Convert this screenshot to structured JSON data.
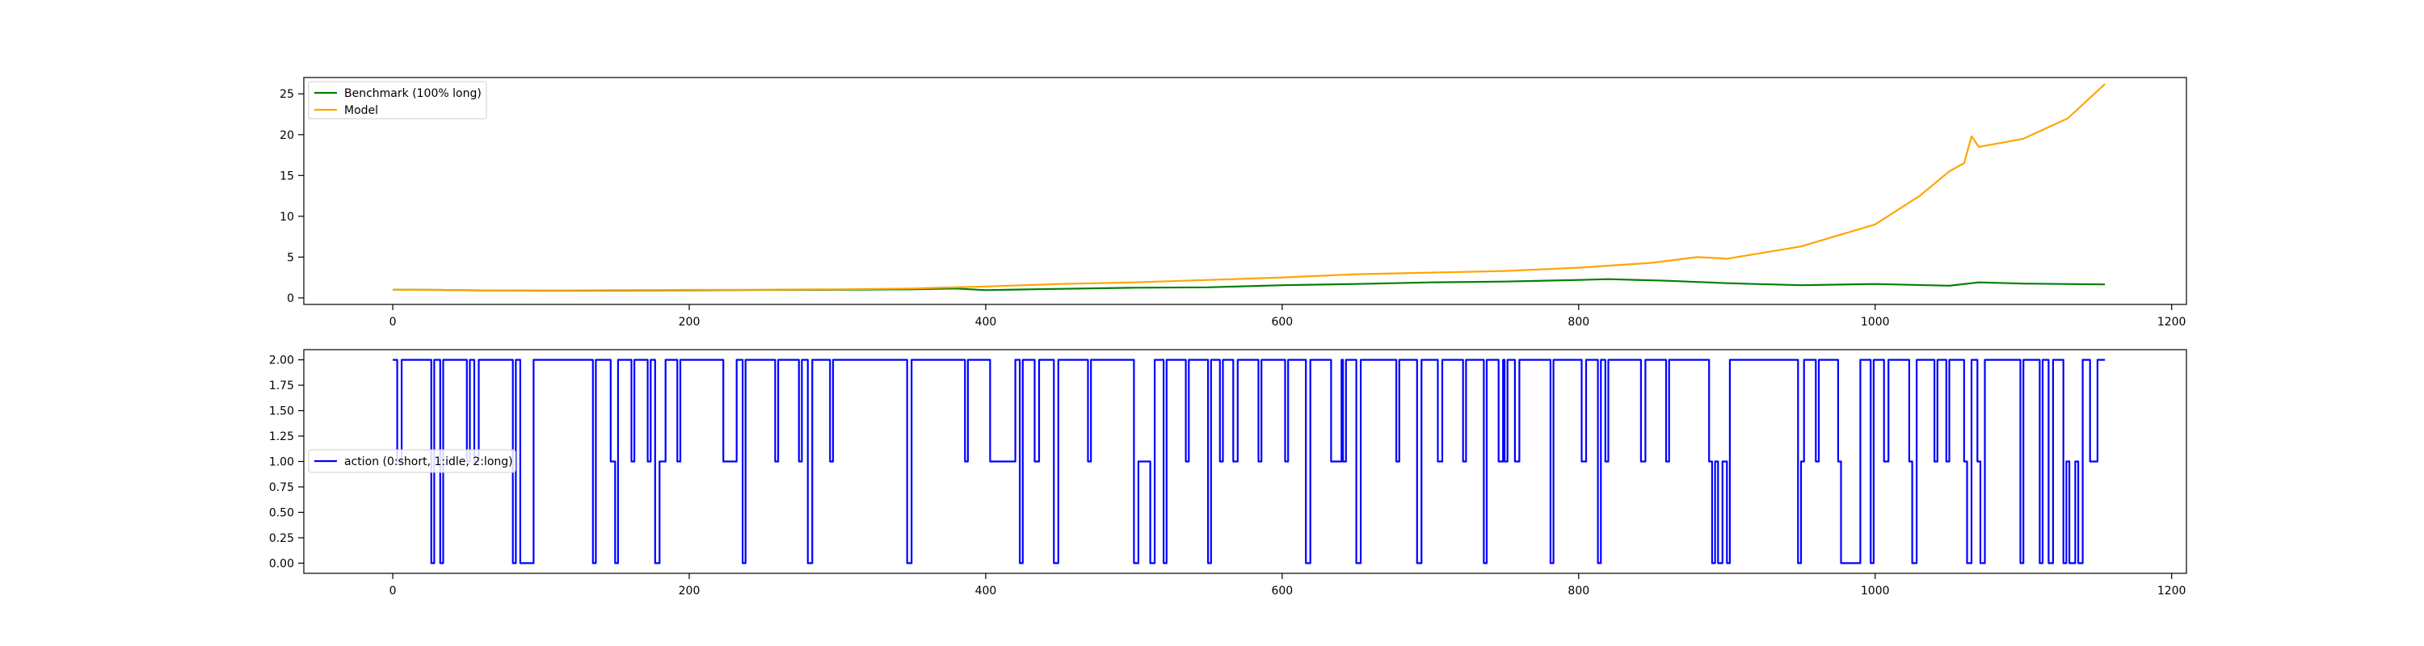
{
  "figure": {
    "background": "#ffffff"
  },
  "chart_data": [
    {
      "type": "line",
      "xlim": [
        -60,
        1210
      ],
      "ylim": [
        -0.8,
        27.0
      ],
      "xticks": [
        0,
        200,
        400,
        600,
        800,
        1000,
        1200
      ],
      "yticks": [
        0,
        5,
        10,
        15,
        20,
        25
      ],
      "ytick_labels": [
        "0",
        "5",
        "10",
        "15",
        "20",
        "25"
      ],
      "legend_position": "top-left",
      "grid": false,
      "series": [
        {
          "name": "Benchmark (100% long)",
          "color": "#008000",
          "points": [
            [
              0,
              1.0
            ],
            [
              30,
              0.98
            ],
            [
              60,
              0.92
            ],
            [
              100,
              0.88
            ],
            [
              150,
              0.9
            ],
            [
              200,
              0.93
            ],
            [
              250,
              0.98
            ],
            [
              300,
              1.0
            ],
            [
              350,
              1.05
            ],
            [
              380,
              1.15
            ],
            [
              400,
              0.95
            ],
            [
              430,
              1.05
            ],
            [
              500,
              1.25
            ],
            [
              550,
              1.3
            ],
            [
              600,
              1.55
            ],
            [
              650,
              1.7
            ],
            [
              700,
              1.9
            ],
            [
              750,
              2.0
            ],
            [
              800,
              2.2
            ],
            [
              820,
              2.3
            ],
            [
              860,
              2.1
            ],
            [
              900,
              1.8
            ],
            [
              950,
              1.55
            ],
            [
              1000,
              1.7
            ],
            [
              1050,
              1.5
            ],
            [
              1070,
              1.9
            ],
            [
              1100,
              1.75
            ],
            [
              1155,
              1.65
            ]
          ]
        },
        {
          "name": "Model",
          "color": "#ffa500",
          "points": [
            [
              0,
              1.0
            ],
            [
              30,
              0.98
            ],
            [
              60,
              0.92
            ],
            [
              100,
              0.9
            ],
            [
              150,
              0.95
            ],
            [
              200,
              0.98
            ],
            [
              250,
              1.0
            ],
            [
              300,
              1.05
            ],
            [
              350,
              1.15
            ],
            [
              400,
              1.4
            ],
            [
              450,
              1.7
            ],
            [
              500,
              1.9
            ],
            [
              550,
              2.2
            ],
            [
              600,
              2.5
            ],
            [
              650,
              2.9
            ],
            [
              700,
              3.1
            ],
            [
              750,
              3.3
            ],
            [
              800,
              3.7
            ],
            [
              850,
              4.3
            ],
            [
              880,
              5.0
            ],
            [
              900,
              4.8
            ],
            [
              950,
              6.3
            ],
            [
              1000,
              9.0
            ],
            [
              1030,
              12.5
            ],
            [
              1050,
              15.5
            ],
            [
              1060,
              16.5
            ],
            [
              1065,
              19.8
            ],
            [
              1070,
              18.5
            ],
            [
              1100,
              19.5
            ],
            [
              1130,
              22.0
            ],
            [
              1155,
              26.2
            ]
          ]
        }
      ]
    },
    {
      "type": "line",
      "xlim": [
        -60,
        1210
      ],
      "ylim": [
        -0.1,
        2.1
      ],
      "xticks": [
        0,
        200,
        400,
        600,
        800,
        1000,
        1200
      ],
      "yticks": [
        0,
        0.25,
        0.5,
        0.75,
        1.0,
        1.25,
        1.5,
        1.75,
        2.0
      ],
      "ytick_labels": [
        "0.00",
        "0.25",
        "0.50",
        "0.75",
        "1.00",
        "1.25",
        "1.50",
        "1.75",
        "2.00"
      ],
      "legend_position": "center-left",
      "grid": false,
      "series": [
        {
          "name": "action (0:short, 1:idle, 2:long)",
          "color": "#0000ff",
          "steps": [
            [
              0,
              2
            ],
            [
              3,
              1
            ],
            [
              6,
              2
            ],
            [
              26,
              0
            ],
            [
              28,
              2
            ],
            [
              32,
              0
            ],
            [
              34,
              2
            ],
            [
              50,
              1
            ],
            [
              52,
              2
            ],
            [
              55,
              1
            ],
            [
              58,
              2
            ],
            [
              81,
              0
            ],
            [
              83,
              2
            ],
            [
              86,
              0
            ],
            [
              95,
              2
            ],
            [
              135,
              0
            ],
            [
              137,
              2
            ],
            [
              147,
              1
            ],
            [
              150,
              0
            ],
            [
              152,
              2
            ],
            [
              161,
              1
            ],
            [
              163,
              2
            ],
            [
              172,
              1
            ],
            [
              174,
              2
            ],
            [
              177,
              0
            ],
            [
              180,
              1
            ],
            [
              184,
              2
            ],
            [
              192,
              1
            ],
            [
              194,
              2
            ],
            [
              223,
              1
            ],
            [
              232,
              2
            ],
            [
              236,
              0
            ],
            [
              238,
              2
            ],
            [
              258,
              1
            ],
            [
              260,
              2
            ],
            [
              274,
              1
            ],
            [
              276,
              2
            ],
            [
              280,
              0
            ],
            [
              283,
              2
            ],
            [
              295,
              1
            ],
            [
              297,
              2
            ],
            [
              347,
              0
            ],
            [
              350,
              2
            ],
            [
              386,
              1
            ],
            [
              388,
              2
            ],
            [
              403,
              1
            ],
            [
              420,
              2
            ],
            [
              423,
              0
            ],
            [
              425,
              2
            ],
            [
              433,
              1
            ],
            [
              436,
              2
            ],
            [
              446,
              0
            ],
            [
              449,
              2
            ],
            [
              469,
              1
            ],
            [
              471,
              2
            ],
            [
              500,
              0
            ],
            [
              503,
              1
            ],
            [
              508,
              1
            ],
            [
              511,
              0
            ],
            [
              514,
              2
            ],
            [
              520,
              0
            ],
            [
              522,
              2
            ],
            [
              535,
              1
            ],
            [
              537,
              2
            ],
            [
              550,
              0
            ],
            [
              552,
              2
            ],
            [
              558,
              1
            ],
            [
              560,
              2
            ],
            [
              567,
              1
            ],
            [
              570,
              2
            ],
            [
              584,
              1
            ],
            [
              586,
              2
            ],
            [
              602,
              1
            ],
            [
              604,
              2
            ],
            [
              616,
              0
            ],
            [
              619,
              2
            ],
            [
              633,
              1
            ],
            [
              640,
              2
            ],
            [
              641,
              1
            ],
            [
              643,
              2
            ],
            [
              650,
              0
            ],
            [
              653,
              2
            ],
            [
              677,
              1
            ],
            [
              679,
              2
            ],
            [
              691,
              0
            ],
            [
              694,
              2
            ],
            [
              705,
              1
            ],
            [
              708,
              2
            ],
            [
              722,
              1
            ],
            [
              724,
              2
            ],
            [
              736,
              0
            ],
            [
              738,
              2
            ],
            [
              746,
              1
            ],
            [
              749,
              2
            ],
            [
              750,
              1
            ],
            [
              752,
              2
            ],
            [
              757,
              1
            ],
            [
              760,
              2
            ],
            [
              781,
              0
            ],
            [
              783,
              2
            ],
            [
              802,
              1
            ],
            [
              805,
              2
            ],
            [
              813,
              0
            ],
            [
              815,
              2
            ],
            [
              818,
              1
            ],
            [
              820,
              2
            ],
            [
              842,
              1
            ],
            [
              845,
              2
            ],
            [
              859,
              1
            ],
            [
              861,
              2
            ],
            [
              888,
              1
            ],
            [
              890,
              0
            ],
            [
              892,
              1
            ],
            [
              894,
              0
            ],
            [
              897,
              1
            ],
            [
              900,
              0
            ],
            [
              902,
              2
            ],
            [
              948,
              0
            ],
            [
              950,
              1
            ],
            [
              952,
              2
            ],
            [
              960,
              1
            ],
            [
              962,
              2
            ],
            [
              975,
              1
            ],
            [
              977,
              0
            ],
            [
              990,
              2
            ],
            [
              997,
              0
            ],
            [
              999,
              2
            ],
            [
              1006,
              1
            ],
            [
              1009,
              2
            ],
            [
              1023,
              1
            ],
            [
              1025,
              0
            ],
            [
              1028,
              2
            ],
            [
              1040,
              1
            ],
            [
              1042,
              2
            ],
            [
              1048,
              1
            ],
            [
              1050,
              2
            ],
            [
              1060,
              1
            ],
            [
              1062,
              0
            ],
            [
              1065,
              2
            ],
            [
              1069,
              1
            ],
            [
              1071,
              0
            ],
            [
              1074,
              2
            ],
            [
              1098,
              0
            ],
            [
              1100,
              2
            ],
            [
              1111,
              0
            ],
            [
              1113,
              2
            ],
            [
              1117,
              0
            ],
            [
              1120,
              2
            ],
            [
              1127,
              0
            ],
            [
              1129,
              1
            ],
            [
              1131,
              0
            ],
            [
              1135,
              1
            ],
            [
              1137,
              0
            ],
            [
              1140,
              2
            ],
            [
              1145,
              1
            ],
            [
              1147,
              1
            ],
            [
              1150,
              2
            ],
            [
              1155,
              2
            ]
          ]
        }
      ]
    }
  ]
}
